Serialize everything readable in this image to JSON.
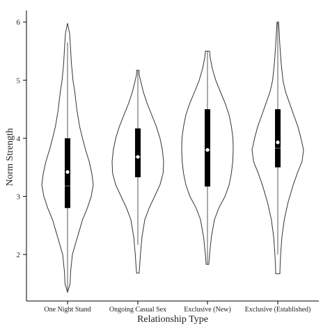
{
  "chart_data": {
    "type": "violin",
    "title": "",
    "xlabel": "Relationship Type",
    "ylabel": "Norm Strength",
    "ylim": [
      1.2,
      6.2
    ],
    "yticks": [
      2,
      3,
      4,
      5,
      6
    ],
    "categories": [
      "One Night Stand",
      "Ongoing Casual Sex",
      "Exclusive (New)",
      "Exclusive (Established)"
    ],
    "series": [
      {
        "category": "One Night Stand",
        "min": 1.35,
        "max": 5.98,
        "q1": 2.8,
        "median": 3.18,
        "q3": 4.0,
        "mean": 3.42,
        "whisker_low": 1.35,
        "whisker_high": 5.65,
        "density": [
          [
            1.35,
            0.0
          ],
          [
            1.5,
            0.1
          ],
          [
            1.7,
            0.12
          ],
          [
            2.0,
            0.19
          ],
          [
            2.2,
            0.32
          ],
          [
            2.4,
            0.45
          ],
          [
            2.6,
            0.58
          ],
          [
            2.8,
            0.77
          ],
          [
            3.0,
            0.92
          ],
          [
            3.2,
            1.0
          ],
          [
            3.4,
            0.94
          ],
          [
            3.6,
            0.84
          ],
          [
            3.8,
            0.7
          ],
          [
            4.0,
            0.58
          ],
          [
            4.2,
            0.47
          ],
          [
            4.5,
            0.36
          ],
          [
            4.8,
            0.28
          ],
          [
            5.0,
            0.21
          ],
          [
            5.3,
            0.15
          ],
          [
            5.6,
            0.11
          ],
          [
            5.8,
            0.08
          ],
          [
            5.98,
            0.0
          ]
        ]
      },
      {
        "category": "Ongoing Casual Sex",
        "min": 1.68,
        "max": 5.17,
        "q1": 3.33,
        "median": 3.68,
        "q3": 4.17,
        "mean": 3.68,
        "whisker_low": 2.17,
        "whisker_high": 5.17,
        "density": [
          [
            1.68,
            0.05
          ],
          [
            1.8,
            0.07
          ],
          [
            2.0,
            0.1
          ],
          [
            2.3,
            0.16
          ],
          [
            2.6,
            0.27
          ],
          [
            2.8,
            0.44
          ],
          [
            3.0,
            0.65
          ],
          [
            3.2,
            0.86
          ],
          [
            3.4,
            0.98
          ],
          [
            3.6,
            1.0
          ],
          [
            3.8,
            0.95
          ],
          [
            4.0,
            0.86
          ],
          [
            4.2,
            0.72
          ],
          [
            4.4,
            0.54
          ],
          [
            4.6,
            0.36
          ],
          [
            4.8,
            0.21
          ],
          [
            5.0,
            0.1
          ],
          [
            5.1,
            0.05
          ],
          [
            5.17,
            0.05
          ]
        ]
      },
      {
        "category": "Exclusive (New)",
        "min": 1.83,
        "max": 5.5,
        "q1": 3.17,
        "median": 3.8,
        "q3": 4.5,
        "mean": 3.8,
        "whisker_low": 1.83,
        "whisker_high": 5.5,
        "density": [
          [
            1.83,
            0.05
          ],
          [
            2.0,
            0.08
          ],
          [
            2.3,
            0.15
          ],
          [
            2.6,
            0.27
          ],
          [
            2.8,
            0.44
          ],
          [
            3.0,
            0.68
          ],
          [
            3.2,
            0.84
          ],
          [
            3.4,
            0.93
          ],
          [
            3.6,
            0.98
          ],
          [
            3.8,
            1.0
          ],
          [
            4.0,
            0.99
          ],
          [
            4.2,
            0.93
          ],
          [
            4.4,
            0.84
          ],
          [
            4.6,
            0.69
          ],
          [
            4.8,
            0.5
          ],
          [
            5.0,
            0.32
          ],
          [
            5.2,
            0.19
          ],
          [
            5.4,
            0.1
          ],
          [
            5.5,
            0.08
          ]
        ]
      },
      {
        "category": "Exclusive (Established)",
        "min": 1.67,
        "max": 6.0,
        "q1": 3.5,
        "median": 3.83,
        "q3": 4.5,
        "mean": 3.93,
        "whisker_low": 2.0,
        "whisker_high": 6.0,
        "density": [
          [
            1.67,
            0.08
          ],
          [
            1.8,
            0.09
          ],
          [
            2.0,
            0.11
          ],
          [
            2.3,
            0.16
          ],
          [
            2.6,
            0.25
          ],
          [
            2.9,
            0.4
          ],
          [
            3.2,
            0.6
          ],
          [
            3.4,
            0.76
          ],
          [
            3.6,
            0.94
          ],
          [
            3.8,
            1.0
          ],
          [
            4.0,
            0.9
          ],
          [
            4.2,
            0.78
          ],
          [
            4.4,
            0.62
          ],
          [
            4.6,
            0.46
          ],
          [
            4.8,
            0.3
          ],
          [
            5.0,
            0.2
          ],
          [
            5.3,
            0.13
          ],
          [
            5.6,
            0.08
          ],
          [
            5.85,
            0.05
          ],
          [
            6.0,
            0.03
          ]
        ]
      }
    ],
    "grid": false,
    "legend": "none"
  }
}
